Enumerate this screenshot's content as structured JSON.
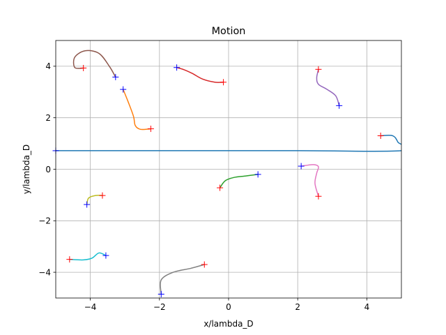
{
  "chart_data": {
    "type": "line",
    "title": "Motion",
    "xlabel": "x/lambda_D",
    "ylabel": "y/lambda_D",
    "xlim": [
      -5,
      5
    ],
    "ylim": [
      -5,
      5
    ],
    "xticks": [
      -4,
      -2,
      0,
      2,
      4
    ],
    "yticks": [
      -4,
      -2,
      0,
      2,
      4
    ],
    "grid": true,
    "series": [
      {
        "color": "#1f77b4",
        "start": [
          4.4,
          1.3
        ],
        "end": [
          -5.0,
          0.72
        ],
        "points": [
          [
            4.4,
            1.3
          ],
          [
            4.75,
            1.3
          ],
          [
            4.9,
            1.05
          ],
          [
            5.0,
            0.72
          ],
          [
            2.0,
            0.72
          ],
          [
            -2.0,
            0.72
          ],
          [
            -5.0,
            0.72
          ]
        ]
      },
      {
        "color": "#ff7f0e",
        "start": [
          -2.25,
          1.57
        ],
        "end": [
          -3.05,
          3.1
        ],
        "points": [
          [
            -2.25,
            1.57
          ],
          [
            -2.55,
            1.55
          ],
          [
            -2.7,
            1.7
          ],
          [
            -2.75,
            2.05
          ],
          [
            -2.9,
            2.6
          ],
          [
            -3.05,
            3.1
          ]
        ]
      },
      {
        "color": "#2ca02c",
        "start": [
          -0.25,
          -0.72
        ],
        "end": [
          0.85,
          -0.2
        ],
        "points": [
          [
            -0.25,
            -0.72
          ],
          [
            -0.1,
            -0.45
          ],
          [
            0.15,
            -0.32
          ],
          [
            0.5,
            -0.26
          ],
          [
            0.85,
            -0.2
          ]
        ]
      },
      {
        "color": "#d62728",
        "start": [
          -0.15,
          3.38
        ],
        "end": [
          -1.5,
          3.95
        ],
        "points": [
          [
            -0.15,
            3.38
          ],
          [
            -0.4,
            3.38
          ],
          [
            -0.75,
            3.5
          ],
          [
            -1.05,
            3.72
          ],
          [
            -1.3,
            3.87
          ],
          [
            -1.5,
            3.95
          ]
        ]
      },
      {
        "color": "#9467bd",
        "start": [
          2.6,
          3.88
        ],
        "end": [
          3.2,
          2.47
        ],
        "points": [
          [
            2.6,
            3.88
          ],
          [
            2.55,
            3.55
          ],
          [
            2.6,
            3.3
          ],
          [
            2.85,
            3.1
          ],
          [
            3.1,
            2.85
          ],
          [
            3.2,
            2.47
          ]
        ]
      },
      {
        "color": "#8c564b",
        "start": [
          -4.2,
          3.93
        ],
        "end": [
          -3.27,
          3.58
        ],
        "points": [
          [
            -4.2,
            3.93
          ],
          [
            -4.45,
            3.95
          ],
          [
            -4.45,
            4.35
          ],
          [
            -4.15,
            4.6
          ],
          [
            -3.75,
            4.5
          ],
          [
            -3.45,
            4.0
          ],
          [
            -3.27,
            3.58
          ]
        ]
      },
      {
        "color": "#e377c2",
        "start": [
          2.6,
          -1.05
        ],
        "end": [
          2.1,
          0.12
        ],
        "points": [
          [
            2.6,
            -1.05
          ],
          [
            2.5,
            -0.55
          ],
          [
            2.55,
            -0.15
          ],
          [
            2.6,
            0.1
          ],
          [
            2.45,
            0.18
          ],
          [
            2.1,
            0.12
          ]
        ]
      },
      {
        "color": "#7f7f7f",
        "start": [
          -0.7,
          -3.7
        ],
        "end": [
          -1.95,
          -4.85
        ],
        "points": [
          [
            -0.7,
            -3.7
          ],
          [
            -1.1,
            -3.85
          ],
          [
            -1.6,
            -4.0
          ],
          [
            -1.95,
            -4.3
          ],
          [
            -1.95,
            -4.85
          ]
        ]
      },
      {
        "color": "#bcbd22",
        "start": [
          -3.65,
          -1.02
        ],
        "end": [
          -4.1,
          -1.37
        ],
        "points": [
          [
            -3.65,
            -1.02
          ],
          [
            -3.85,
            -1.02
          ],
          [
            -4.05,
            -1.12
          ],
          [
            -4.1,
            -1.37
          ]
        ]
      },
      {
        "color": "#17becf",
        "start": [
          -4.6,
          -3.5
        ],
        "end": [
          -3.55,
          -3.35
        ],
        "points": [
          [
            -4.6,
            -3.5
          ],
          [
            -4.2,
            -3.52
          ],
          [
            -3.95,
            -3.45
          ],
          [
            -3.75,
            -3.25
          ],
          [
            -3.55,
            -3.35
          ]
        ]
      }
    ]
  },
  "colors": {
    "start_marker": "#ff0000",
    "end_marker": "#0000ff",
    "grid": "#b0b0b0",
    "axes": "#000000"
  }
}
